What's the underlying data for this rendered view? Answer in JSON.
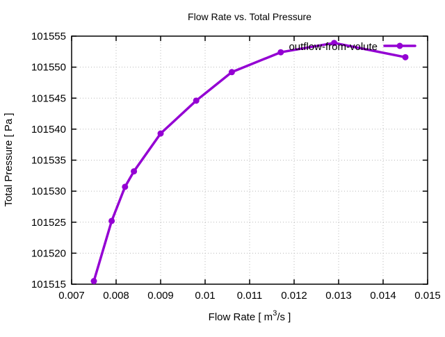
{
  "colors": {
    "background": "#ffffff",
    "series_line": "#9400d3",
    "grid": "#b8b8b8",
    "axis": "#000000",
    "text": "#000000"
  },
  "chart_data": {
    "type": "line",
    "title": "Flow Rate vs. Total Pressure",
    "xlabel": {
      "pre": "Flow Rate [ m",
      "sup": "3",
      "post": "/s ]"
    },
    "ylabel": "Total Pressure [ Pa ]",
    "xlim": [
      0.007,
      0.015
    ],
    "ylim": [
      101515,
      101555
    ],
    "grid": true,
    "legend_position": "top-right-inside",
    "x_ticks": [
      {
        "value": 0.007,
        "label": "0.007"
      },
      {
        "value": 0.008,
        "label": "0.008"
      },
      {
        "value": 0.009,
        "label": "0.009"
      },
      {
        "value": 0.01,
        "label": "0.01"
      },
      {
        "value": 0.011,
        "label": "0.011"
      },
      {
        "value": 0.012,
        "label": "0.012"
      },
      {
        "value": 0.013,
        "label": "0.013"
      },
      {
        "value": 0.014,
        "label": "0.014"
      },
      {
        "value": 0.015,
        "label": "0.015"
      }
    ],
    "y_ticks": [
      {
        "value": 101515,
        "label": "101515"
      },
      {
        "value": 101520,
        "label": "101520"
      },
      {
        "value": 101525,
        "label": "101525"
      },
      {
        "value": 101530,
        "label": "101530"
      },
      {
        "value": 101535,
        "label": "101535"
      },
      {
        "value": 101540,
        "label": "101540"
      },
      {
        "value": 101545,
        "label": "101545"
      },
      {
        "value": 101550,
        "label": "101550"
      },
      {
        "value": 101555,
        "label": "101555"
      }
    ],
    "series": [
      {
        "name": "outflow-from-volute",
        "color": "#9400d3",
        "marker": "circle",
        "points": [
          [
            0.0075,
            101515.5
          ],
          [
            0.0079,
            101525.2
          ],
          [
            0.0082,
            101530.7
          ],
          [
            0.0084,
            101533.2
          ],
          [
            0.009,
            101539.3
          ],
          [
            0.0098,
            101544.6
          ],
          [
            0.0106,
            101549.2
          ],
          [
            0.0117,
            101552.4
          ],
          [
            0.0129,
            101553.9
          ],
          [
            0.0145,
            101551.6
          ]
        ]
      }
    ]
  }
}
